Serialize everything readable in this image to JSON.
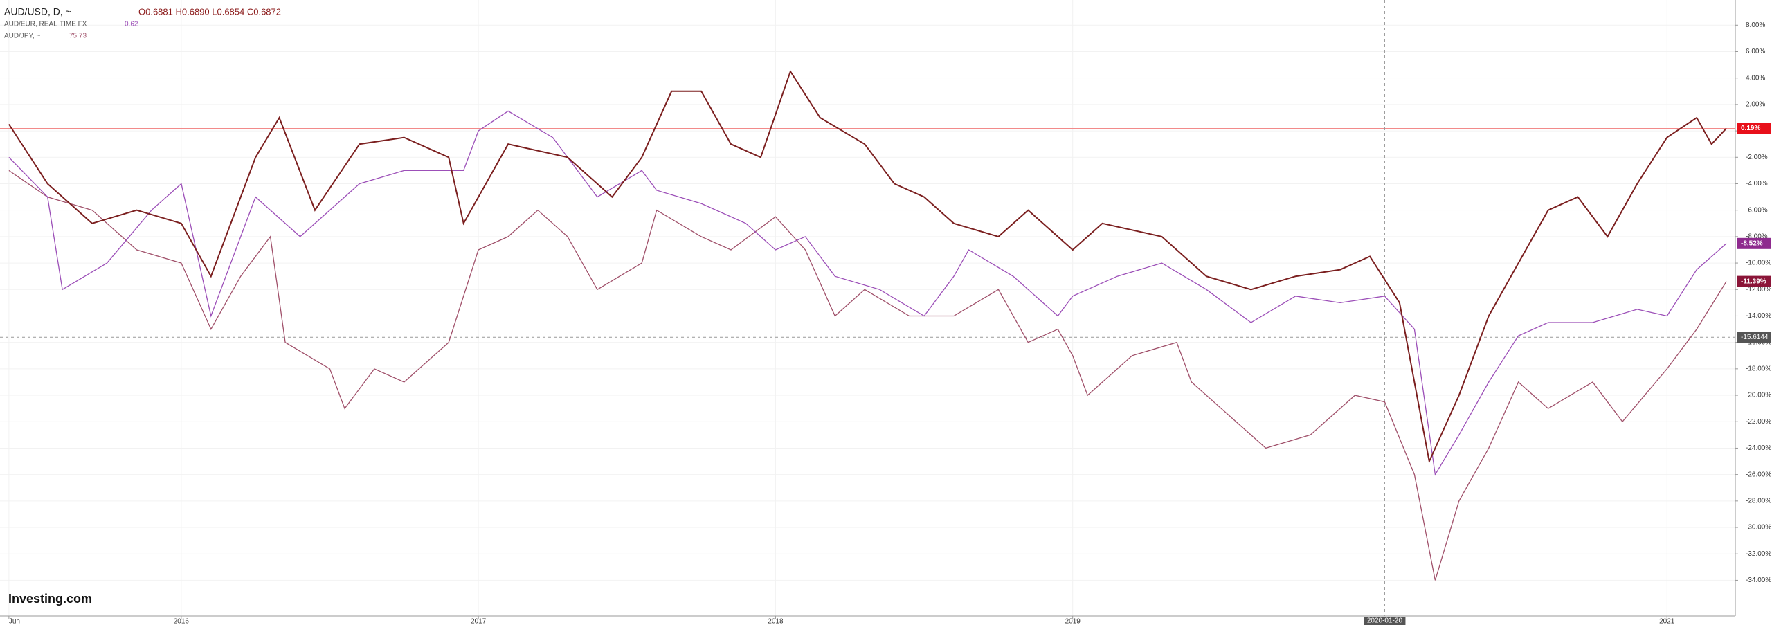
{
  "chart_data": {
    "type": "line",
    "header": {
      "symbol": "AUD/USD, D, ~",
      "ohlc": "O0.6881 H0.6890 L0.6854 C0.6872"
    },
    "watermark": "Investing.com",
    "series": [
      {
        "name": "AUD/USD",
        "color": "#7b1f1f",
        "legend_value": null,
        "x": [
          2015.42,
          2015.55,
          2015.7,
          2015.85,
          2016.0,
          2016.1,
          2016.25,
          2016.33,
          2016.45,
          2016.6,
          2016.75,
          2016.9,
          2016.95,
          2017.1,
          2017.3,
          2017.45,
          2017.55,
          2017.65,
          2017.75,
          2017.85,
          2017.95,
          2018.05,
          2018.15,
          2018.3,
          2018.4,
          2018.5,
          2018.6,
          2018.75,
          2018.85,
          2019.0,
          2019.1,
          2019.3,
          2019.45,
          2019.6,
          2019.75,
          2019.9,
          2020.0,
          2020.1,
          2020.2,
          2020.3,
          2020.4,
          2020.5,
          2020.6,
          2020.7,
          2020.8,
          2020.9,
          2021.0,
          2021.1,
          2021.15,
          2021.2
        ],
        "values": [
          0.5,
          -4,
          -7,
          -6,
          -7,
          -11,
          -2,
          1,
          -6,
          -1,
          -0.5,
          -2,
          -7,
          -1,
          -2,
          -5,
          -2,
          3,
          3,
          -1,
          -2,
          4.5,
          1,
          -1,
          -4,
          -5,
          -7,
          -8,
          -6,
          -9,
          -7,
          -8,
          -11,
          -12,
          -11,
          -10.5,
          -9.5,
          -13,
          -25,
          -20,
          -14,
          -10,
          -6,
          -5,
          -8,
          -4,
          -0.5,
          1,
          -1,
          0.19
        ],
        "value_labels": [
          null,
          null,
          null,
          null,
          null,
          null,
          null,
          null,
          null,
          null,
          null,
          null,
          null,
          null,
          null,
          null,
          null,
          null,
          null,
          null,
          null,
          null,
          null,
          null,
          null,
          null,
          null,
          null,
          null,
          null,
          null,
          null,
          null,
          null,
          null,
          null,
          null,
          null,
          null,
          null,
          null,
          null,
          null,
          null,
          null,
          null,
          null,
          null,
          null,
          "0.19%"
        ],
        "tag_color": "#e8101a"
      },
      {
        "name": "AUD/EUR, REAL-TIME FX",
        "color": "#9c4fb8",
        "legend_value": "0.62",
        "x": [
          2015.42,
          2015.55,
          2015.6,
          2015.75,
          2015.9,
          2016.0,
          2016.1,
          2016.25,
          2016.4,
          2016.6,
          2016.75,
          2016.95,
          2017.0,
          2017.1,
          2017.25,
          2017.4,
          2017.55,
          2017.6,
          2017.75,
          2017.9,
          2018.0,
          2018.1,
          2018.2,
          2018.35,
          2018.5,
          2018.6,
          2018.65,
          2018.8,
          2018.95,
          2019.0,
          2019.15,
          2019.3,
          2019.45,
          2019.6,
          2019.75,
          2019.9,
          2020.05,
          2020.15,
          2020.22,
          2020.3,
          2020.4,
          2020.5,
          2020.6,
          2020.75,
          2020.9,
          2021.0,
          2021.1,
          2021.2
        ],
        "values": [
          -2,
          -5,
          -12,
          -10,
          -6,
          -4,
          -14,
          -5,
          -8,
          -4,
          -3,
          -3,
          0,
          1.5,
          -0.5,
          -5,
          -3,
          -4.5,
          -5.5,
          -7,
          -9,
          -8,
          -11,
          -12,
          -14,
          -11,
          -9,
          -11,
          -14,
          -12.5,
          -11,
          -10,
          -12,
          -14.5,
          -12.5,
          -13,
          -12.5,
          -15,
          -26,
          -23,
          -19,
          -15.5,
          -14.5,
          -14.5,
          -13.5,
          -14,
          -10.5,
          -8.52
        ],
        "value_labels": [
          null,
          null,
          null,
          null,
          null,
          null,
          null,
          null,
          null,
          null,
          null,
          null,
          null,
          null,
          null,
          null,
          null,
          null,
          null,
          null,
          null,
          null,
          null,
          null,
          null,
          null,
          null,
          null,
          null,
          null,
          null,
          null,
          null,
          null,
          null,
          null,
          null,
          null,
          null,
          null,
          null,
          null,
          null,
          null,
          null,
          null,
          null,
          "-8.52%"
        ],
        "tag_color": "#8e2a8e"
      },
      {
        "name": "AUD/JPY, ~",
        "color": "#a0506a",
        "legend_value": "75.73",
        "x": [
          2015.42,
          2015.55,
          2015.7,
          2015.85,
          2016.0,
          2016.1,
          2016.2,
          2016.3,
          2016.35,
          2016.5,
          2016.55,
          2016.65,
          2016.75,
          2016.9,
          2017.0,
          2017.1,
          2017.2,
          2017.3,
          2017.4,
          2017.55,
          2017.6,
          2017.75,
          2017.85,
          2018.0,
          2018.1,
          2018.2,
          2018.3,
          2018.45,
          2018.6,
          2018.75,
          2018.85,
          2018.95,
          2019.0,
          2019.05,
          2019.2,
          2019.35,
          2019.4,
          2019.5,
          2019.65,
          2019.8,
          2019.95,
          2020.05,
          2020.15,
          2020.22,
          2020.3,
          2020.4,
          2020.5,
          2020.6,
          2020.75,
          2020.85,
          2021.0,
          2021.1,
          2021.2
        ],
        "values": [
          -3,
          -5,
          -6,
          -9,
          -10,
          -15,
          -11,
          -8,
          -16,
          -18,
          -21,
          -18,
          -19,
          -16,
          -9,
          -8,
          -6,
          -8,
          -12,
          -10,
          -6,
          -8,
          -9,
          -6.5,
          -9,
          -14,
          -12,
          -14,
          -14,
          -12,
          -16,
          -15,
          -17,
          -20,
          -17,
          -16,
          -19,
          -21,
          -24,
          -23,
          -20,
          -20.5,
          -26,
          -34,
          -28,
          -24,
          -19,
          -21,
          -19,
          -22,
          -18,
          -15,
          -11.39
        ],
        "value_labels": [
          null,
          null,
          null,
          null,
          null,
          null,
          null,
          null,
          null,
          null,
          null,
          null,
          null,
          null,
          null,
          null,
          null,
          null,
          null,
          null,
          null,
          null,
          null,
          null,
          null,
          null,
          null,
          null,
          null,
          null,
          null,
          null,
          null,
          null,
          null,
          null,
          null,
          null,
          null,
          null,
          null,
          null,
          null,
          null,
          null,
          null,
          null,
          null,
          null,
          null,
          null,
          null,
          "-11.39%"
        ],
        "tag_color": "#8b1538"
      }
    ],
    "price_line": 0.19,
    "crosshair": {
      "x": {
        "value": 2020.05,
        "label": "2020-01-20"
      },
      "y": -15.6144
    },
    "xlim": [
      2015.39,
      2021.23
    ],
    "xticks": [
      {
        "value": 2015.42,
        "label": "Jun"
      },
      2016,
      2017,
      2018,
      2019,
      2021
    ],
    "ylim": [
      -36.7,
      9.9
    ],
    "yticks": [
      {
        "value": 8,
        "label": "8.00%"
      },
      {
        "value": 6,
        "label": "6.00%"
      },
      {
        "value": 4,
        "label": "4.00%"
      },
      {
        "value": 2,
        "label": "2.00%"
      },
      {
        "value": 0,
        "label": "0.00%"
      },
      {
        "value": -2,
        "label": "-2.00%"
      },
      {
        "value": -4,
        "label": "-4.00%"
      },
      {
        "value": -6,
        "label": "-6.00%"
      },
      {
        "value": -8,
        "label": "-8.00%"
      },
      {
        "value": -10,
        "label": "-10.00%"
      },
      {
        "value": -12,
        "label": "-12.00%"
      },
      {
        "value": -14,
        "label": "-14.00%"
      },
      {
        "value": -16,
        "label": "-16.00%"
      },
      {
        "value": -18,
        "label": "-18.00%"
      },
      {
        "value": -20,
        "label": "-20.00%"
      },
      {
        "value": -22,
        "label": "-22.00%"
      },
      {
        "value": -24,
        "label": "-24.00%"
      },
      {
        "value": -26,
        "label": "-26.00%"
      },
      {
        "value": -28,
        "label": "-28.00%"
      },
      {
        "value": -30,
        "label": "-30.00%"
      },
      {
        "value": -32,
        "label": "-32.00%"
      },
      {
        "value": -34,
        "label": "-34.00%"
      }
    ],
    "grid": true
  }
}
